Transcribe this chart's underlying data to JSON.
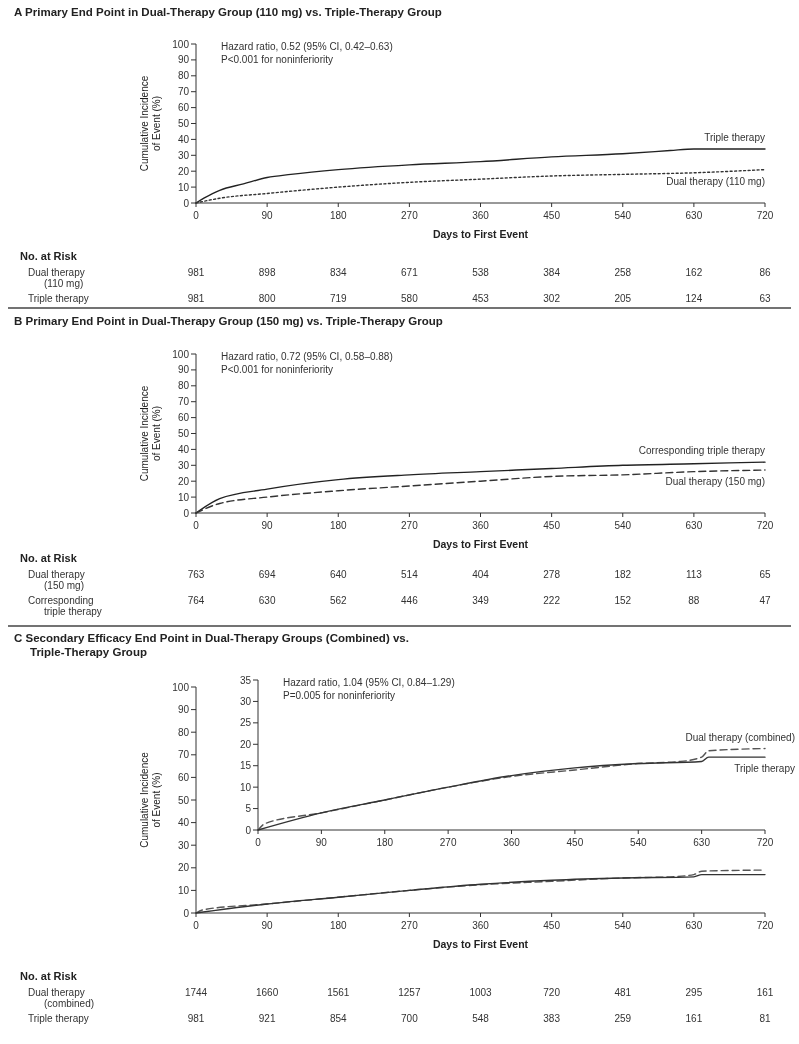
{
  "chart_data": [
    {
      "type": "line",
      "title": "A Primary End Point in Dual-Therapy Group (110 mg) vs. Triple-Therapy Group",
      "xlabel": "Days to First Event",
      "ylabel": "Cumulative Incidence of Event (%)",
      "xlim": [
        0,
        720
      ],
      "xticks": [
        0,
        90,
        180,
        270,
        360,
        450,
        540,
        630,
        720
      ],
      "ylim": [
        0,
        100
      ],
      "yticks": [
        0,
        10,
        20,
        30,
        40,
        50,
        60,
        70,
        80,
        90,
        100
      ],
      "grid": false,
      "marker": "none",
      "series": [
        {
          "name": "Triple therapy",
          "color": "#222222",
          "line_style": "solid",
          "x": [
            0,
            10,
            30,
            60,
            90,
            120,
            180,
            270,
            360,
            450,
            540,
            600,
            630,
            720
          ],
          "values": [
            0,
            3,
            8,
            12,
            16,
            18,
            21,
            24,
            26,
            29,
            31,
            33,
            34,
            34
          ]
        },
        {
          "name": "Dual therapy (110 mg)",
          "color": "#333333",
          "line_style": "dotted",
          "x": [
            0,
            30,
            90,
            180,
            270,
            360,
            450,
            540,
            630,
            720
          ],
          "values": [
            0,
            3,
            6,
            10,
            13,
            15,
            17,
            18,
            19,
            21
          ]
        }
      ],
      "annotations": [
        "Hazard ratio, 0.52 (95% CI, 0.42–0.63)",
        "P<0.001 for noninferiority",
        "No. at Risk",
        "Dual therapy (110 mg)",
        "981",
        "898",
        "834",
        "671",
        "538",
        "384",
        "258",
        "162",
        "86",
        "Triple therapy",
        "981",
        "800",
        "719",
        "580",
        "453",
        "302",
        "205",
        "124",
        "63"
      ]
    },
    {
      "type": "line",
      "title": "B Primary End Point in Dual-Therapy Group (150 mg) vs. Triple-Therapy Group",
      "xlabel": "Days to First Event",
      "ylabel": "Cumulative Incidence of Event (%)",
      "xlim": [
        0,
        720
      ],
      "xticks": [
        0,
        90,
        180,
        270,
        360,
        450,
        540,
        630,
        720
      ],
      "ylim": [
        0,
        100
      ],
      "yticks": [
        0,
        10,
        20,
        30,
        40,
        50,
        60,
        70,
        80,
        90,
        100
      ],
      "grid": false,
      "marker": "none",
      "series": [
        {
          "name": "Corresponding triple therapy",
          "color": "#222222",
          "line_style": "solid",
          "x": [
            0,
            30,
            90,
            180,
            270,
            360,
            450,
            540,
            630,
            720
          ],
          "values": [
            0,
            9,
            15,
            21,
            24,
            26,
            28,
            30,
            31,
            32
          ]
        },
        {
          "name": "Dual therapy (150 mg)",
          "color": "#333333",
          "line_style": "dashed",
          "x": [
            0,
            30,
            90,
            180,
            270,
            360,
            450,
            540,
            630,
            720
          ],
          "values": [
            0,
            6,
            10,
            14,
            17,
            20,
            23,
            24,
            26,
            27
          ]
        }
      ],
      "annotations": [
        "Hazard ratio, 0.72 (95% CI, 0.58–0.88)",
        "P<0.001 for noninferiority",
        "No. at Risk",
        "Dual therapy (150 mg)",
        "763",
        "694",
        "640",
        "514",
        "404",
        "278",
        "182",
        "113",
        "65",
        "Corresponding triple therapy",
        "764",
        "630",
        "562",
        "446",
        "349",
        "222",
        "152",
        "88",
        "47"
      ]
    },
    {
      "type": "line",
      "title": "C Secondary Efficacy End Point in Dual-Therapy Groups (Combined) vs. Triple-Therapy Group",
      "xlabel": "Days to First Event",
      "ylabel": "Cumulative Incidence of Event (%)",
      "xlim": [
        0,
        720
      ],
      "xticks": [
        0,
        90,
        180,
        270,
        360,
        450,
        540,
        630,
        720
      ],
      "ylim": [
        0,
        100
      ],
      "yticks": [
        0,
        10,
        20,
        30,
        40,
        50,
        60,
        70,
        80,
        90,
        100
      ],
      "grid": false,
      "marker": "none",
      "series": [
        {
          "color": "#555555",
          "line_style": "dashed",
          "x": [
            0,
            10,
            90,
            180,
            270,
            360,
            450,
            540,
            600,
            630,
            640,
            720
          ],
          "values": [
            0,
            1.5,
            4,
            7,
            10,
            12.5,
            14,
            15.5,
            16,
            17,
            18.5,
            19
          ]
        },
        {
          "color": "#333333",
          "line_style": "solid",
          "x": [
            0,
            90,
            180,
            270,
            360,
            450,
            540,
            630,
            640,
            720
          ],
          "values": [
            0,
            4,
            7,
            10,
            12.7,
            14.5,
            15.5,
            16,
            17,
            17
          ]
        }
      ],
      "annotations": [
        "No. at Risk",
        "Dual therapy (combined)",
        "1744",
        "1660",
        "1561",
        "1257",
        "1003",
        "720",
        "481",
        "295",
        "161",
        "Triple therapy",
        "981",
        "921",
        "854",
        "700",
        "548",
        "383",
        "259",
        "161",
        "81"
      ]
    },
    {
      "type": "line",
      "xlim": [
        0,
        720
      ],
      "xticks": [
        0,
        90,
        180,
        270,
        360,
        450,
        540,
        630,
        720
      ],
      "ylim": [
        0,
        35
      ],
      "yticks": [
        0,
        5,
        10,
        15,
        20,
        25,
        30,
        35
      ],
      "grid": false,
      "marker": "none",
      "series": [
        {
          "name": "Dual therapy (combined)",
          "color": "#555555",
          "line_style": "dashed",
          "x": [
            0,
            10,
            90,
            180,
            270,
            360,
            450,
            540,
            600,
            630,
            640,
            720
          ],
          "values": [
            0,
            1.5,
            4,
            7,
            10,
            12.5,
            14,
            15.5,
            16,
            17,
            18.5,
            19
          ]
        },
        {
          "name": "Triple therapy",
          "color": "#333333",
          "line_style": "solid",
          "x": [
            0,
            90,
            180,
            270,
            360,
            450,
            540,
            630,
            640,
            720
          ],
          "values": [
            0,
            4,
            7,
            10,
            12.7,
            14.5,
            15.5,
            16,
            17,
            17
          ]
        }
      ],
      "annotations": [
        "Hazard ratio, 1.04 (95% CI, 0.84–1.29)",
        "P=0.005 for noninferiority"
      ]
    }
  ]
}
